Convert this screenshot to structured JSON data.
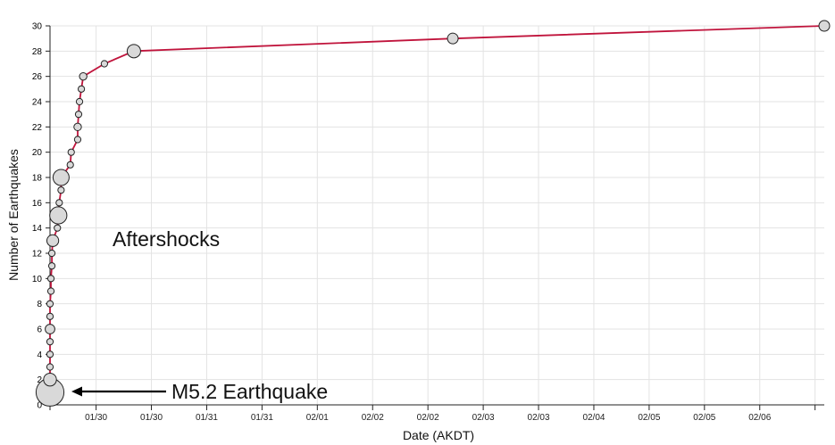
{
  "chart_data": {
    "type": "scatter",
    "title": "",
    "xlabel": "Date (AKDT)",
    "ylabel": "Number of Earthquakes",
    "x_unit": "days",
    "xlim": [
      0,
      8.4
    ],
    "ylim": [
      0,
      30
    ],
    "yticks": [
      0,
      2,
      4,
      6,
      8,
      10,
      12,
      14,
      16,
      18,
      20,
      22,
      24,
      26,
      28,
      30
    ],
    "xticks": [
      {
        "x": 0.0,
        "label": ""
      },
      {
        "x": 0.5,
        "label": "01/30"
      },
      {
        "x": 1.1,
        "label": "01/30"
      },
      {
        "x": 1.7,
        "label": "01/31"
      },
      {
        "x": 2.3,
        "label": "01/31"
      },
      {
        "x": 2.9,
        "label": "02/01"
      },
      {
        "x": 3.5,
        "label": "02/02"
      },
      {
        "x": 4.1,
        "label": "02/02"
      },
      {
        "x": 4.7,
        "label": "02/03"
      },
      {
        "x": 5.3,
        "label": "02/03"
      },
      {
        "x": 5.9,
        "label": "02/04"
      },
      {
        "x": 6.5,
        "label": "02/05"
      },
      {
        "x": 7.1,
        "label": "02/05"
      },
      {
        "x": 7.7,
        "label": "02/06"
      },
      {
        "x": 8.3,
        "label": ""
      }
    ],
    "grid": true,
    "line_color": "#c0143c",
    "marker_fill": "#d9d9d9",
    "marker_stroke": "#222222",
    "points": [
      {
        "x": 0.0,
        "y": 1,
        "size": 5.2
      },
      {
        "x": 0.0,
        "y": 2,
        "size": 2.4
      },
      {
        "x": 0.0,
        "y": 3,
        "size": 1.2
      },
      {
        "x": 0.0,
        "y": 4,
        "size": 1.2
      },
      {
        "x": 0.0,
        "y": 5,
        "size": 1.2
      },
      {
        "x": 0.0,
        "y": 6,
        "size": 1.8
      },
      {
        "x": 0.0,
        "y": 7,
        "size": 1.2
      },
      {
        "x": 0.0,
        "y": 8,
        "size": 1.2
      },
      {
        "x": 0.01,
        "y": 9,
        "size": 1.2
      },
      {
        "x": 0.01,
        "y": 10,
        "size": 1.2
      },
      {
        "x": 0.02,
        "y": 11,
        "size": 1.2
      },
      {
        "x": 0.02,
        "y": 12,
        "size": 1.2
      },
      {
        "x": 0.03,
        "y": 13,
        "size": 2.2
      },
      {
        "x": 0.08,
        "y": 14,
        "size": 1.2
      },
      {
        "x": 0.09,
        "y": 15,
        "size": 3.2
      },
      {
        "x": 0.1,
        "y": 16,
        "size": 1.2
      },
      {
        "x": 0.12,
        "y": 17,
        "size": 1.2
      },
      {
        "x": 0.12,
        "y": 18,
        "size": 3.0
      },
      {
        "x": 0.22,
        "y": 19,
        "size": 1.2
      },
      {
        "x": 0.23,
        "y": 20,
        "size": 1.2
      },
      {
        "x": 0.3,
        "y": 21,
        "size": 1.2
      },
      {
        "x": 0.3,
        "y": 22,
        "size": 1.4
      },
      {
        "x": 0.31,
        "y": 23,
        "size": 1.2
      },
      {
        "x": 0.32,
        "y": 24,
        "size": 1.2
      },
      {
        "x": 0.34,
        "y": 25,
        "size": 1.2
      },
      {
        "x": 0.36,
        "y": 26,
        "size": 1.4
      },
      {
        "x": 0.59,
        "y": 27,
        "size": 1.2
      },
      {
        "x": 0.91,
        "y": 28,
        "size": 2.5
      },
      {
        "x": 4.37,
        "y": 29,
        "size": 2.0
      },
      {
        "x": 8.4,
        "y": 30,
        "size": 2.0
      }
    ],
    "annotations": [
      {
        "text": "Aftershocks"
      },
      {
        "text": "M5.2 Earthquake"
      }
    ]
  }
}
